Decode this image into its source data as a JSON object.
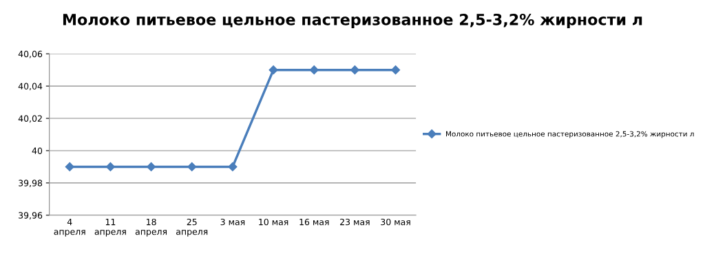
{
  "chart_data": {
    "type": "line",
    "title": "Молоко питьевое цельное пастеризованное 2,5-3,2% жирности л",
    "categories": [
      "4\nапреля",
      "11\nапреля",
      "18\nапреля",
      "25\nапреля",
      "3 мая",
      "10 мая",
      "16 мая",
      "23 мая",
      "30 мая"
    ],
    "series": [
      {
        "name": "Молоко питьевое цельное пастеризованное 2,5-3,2% жирности л",
        "color": "#4a7ebb",
        "values": [
          39.99,
          39.99,
          39.99,
          39.99,
          39.99,
          40.05,
          40.05,
          40.05,
          40.05
        ]
      }
    ],
    "ylim": [
      39.96,
      40.06
    ],
    "yticks": [
      {
        "value": 39.96,
        "label": "39,96"
      },
      {
        "value": 39.98,
        "label": "39,98"
      },
      {
        "value": 40,
        "label": "40"
      },
      {
        "value": 40.02,
        "label": "40,02"
      },
      {
        "value": 40.04,
        "label": "40,04"
      },
      {
        "value": 40.06,
        "label": "40,06"
      }
    ],
    "grid": "y",
    "legend": "right",
    "marker": "diamond",
    "line_style": "solid"
  }
}
